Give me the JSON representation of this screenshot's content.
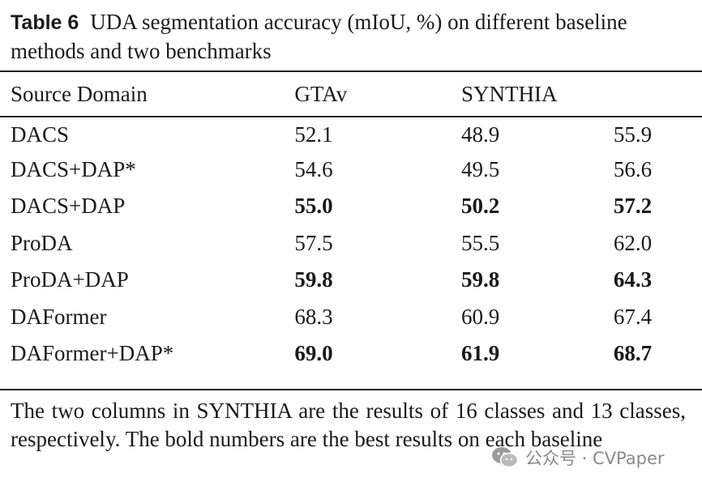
{
  "caption": {
    "label": "Table 6",
    "text": "UDA segmentation accuracy (mIoU, %) on different baseline methods and two benchmarks"
  },
  "table": {
    "headers": [
      "Source Domain",
      "GTAv",
      "SYNTHIA",
      ""
    ],
    "rows": [
      {
        "method": "DACS",
        "values": [
          "52.1",
          "48.9",
          "55.9"
        ],
        "bold": [
          false,
          false,
          false
        ]
      },
      {
        "method": "DACS+DAP*",
        "values": [
          "54.6",
          "49.5",
          "56.6"
        ],
        "bold": [
          false,
          false,
          false
        ]
      },
      {
        "method": "DACS+DAP",
        "values": [
          "55.0",
          "50.2",
          "57.2"
        ],
        "bold": [
          true,
          true,
          true
        ]
      },
      {
        "method": "ProDA",
        "values": [
          "57.5",
          "55.5",
          "62.0"
        ],
        "bold": [
          false,
          false,
          false
        ]
      },
      {
        "method": "ProDA+DAP",
        "values": [
          "59.8",
          "59.8",
          "64.3"
        ],
        "bold": [
          true,
          true,
          true
        ]
      },
      {
        "method": "DAFormer",
        "values": [
          "68.3",
          "60.9",
          "67.4"
        ],
        "bold": [
          false,
          false,
          false
        ]
      },
      {
        "method": "DAFormer+DAP*",
        "values": [
          "69.0",
          "61.9",
          "68.7"
        ],
        "bold": [
          true,
          true,
          true
        ]
      }
    ]
  },
  "note": "The two columns in SYNTHIA are the results of 16 classes and 13 classes, respectively. The bold numbers are the best results on each baseline",
  "watermark": {
    "text": "公众号 · CVPaper",
    "icon": "wechat-icon",
    "color": "#8a8a8a"
  }
}
